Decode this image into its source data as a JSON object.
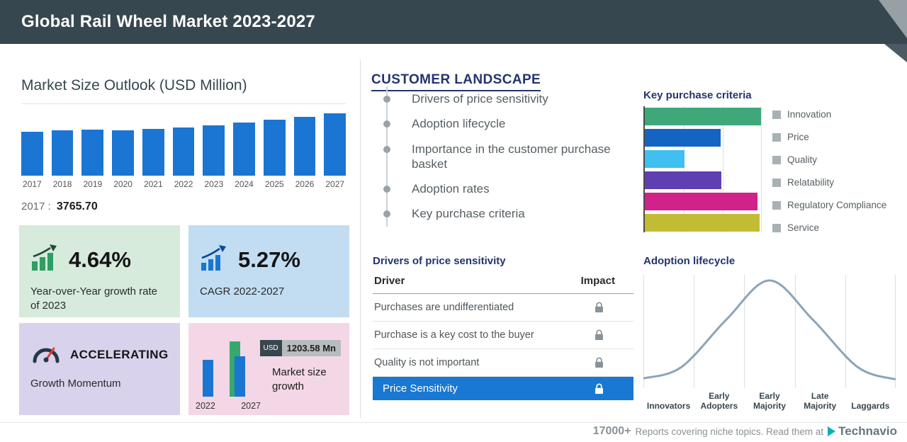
{
  "header": {
    "title": "Global Rail Wheel Market 2023-2027"
  },
  "market_outlook": {
    "title": "Market Size Outlook (USD Million)",
    "base_year_label": "2017 :",
    "base_year_value": "3765.70"
  },
  "cards": {
    "yoy": {
      "value": "4.64%",
      "label": "Year-over-Year growth rate of 2023"
    },
    "cagr": {
      "value": "5.27%",
      "label": "CAGR 2022-2027"
    },
    "momentum": {
      "title": "ACCELERATING",
      "label": "Growth Momentum"
    },
    "growth": {
      "currency": "USD",
      "amount": "1203.58 Mn",
      "label": "Market size growth",
      "start_year": "2022",
      "end_year": "2027"
    }
  },
  "customer_landscape": {
    "title": "CUSTOMER LANDSCAPE",
    "items": [
      "Drivers of price sensitivity",
      "Adoption lifecycle",
      "Importance in the customer purchase basket",
      "Adoption rates",
      "Key purchase criteria"
    ]
  },
  "key_purchase_criteria": {
    "heading": "Key purchase criteria"
  },
  "price_sensitivity": {
    "heading": "Drivers of price sensitivity",
    "columns": [
      "Driver",
      "Impact"
    ],
    "rows": [
      "Purchases are undifferentiated",
      "Purchase is a key cost to the buyer",
      "Quality is not important"
    ],
    "highlight": "Price Sensitivity"
  },
  "adoption_lifecycle": {
    "heading": "Adoption lifecycle"
  },
  "footer": {
    "count": "17000+",
    "text": "Reports covering niche topics. Read them at",
    "brand": "Technavio"
  },
  "colors": {
    "header": "#37474f",
    "accent_blue": "#1b75d2",
    "teal": "#00b2bd",
    "highlight_row": "#1878d2"
  },
  "chart_data": [
    {
      "name": "market-size-outlook",
      "type": "bar",
      "title": "Market Size Outlook (USD Million)",
      "categories": [
        "2017",
        "2018",
        "2019",
        "2020",
        "2021",
        "2022",
        "2023",
        "2024",
        "2025",
        "2026",
        "2027"
      ],
      "values": [
        3765.7,
        3850,
        3935,
        3865,
        3990,
        4110,
        4300,
        4505,
        4755,
        5025,
        5315
      ],
      "ylabel": "USD Million",
      "bar_color": "#1b75d2",
      "labeled_value": {
        "year": "2017",
        "value": 3765.7
      }
    },
    {
      "name": "key-purchase-criteria",
      "type": "bar",
      "orientation": "horizontal",
      "categories": [
        "Innovation",
        "Price",
        "Quality",
        "Relatability",
        "Regulatory Compliance",
        "Service"
      ],
      "values": [
        100,
        65,
        34,
        66,
        97,
        99
      ],
      "value_unit": "relative-length",
      "colors": [
        "#3fa87a",
        "#1464c4",
        "#3fc0f0",
        "#6040b0",
        "#d02288",
        "#c2bc35"
      ],
      "legend_position": "right",
      "grid": true
    },
    {
      "name": "adoption-lifecycle",
      "type": "line",
      "curve": "bell",
      "categories": [
        "Innovators",
        "Early Adopters",
        "Early Majority",
        "Late Majority",
        "Laggards"
      ],
      "points": [
        [
          0,
          0.04
        ],
        [
          0.15,
          0.15
        ],
        [
          0.33,
          0.62
        ],
        [
          0.5,
          1.0
        ],
        [
          0.67,
          0.62
        ],
        [
          0.85,
          0.15
        ],
        [
          1,
          0.03
        ]
      ],
      "line_color": "#8ba4ba",
      "grid": true
    },
    {
      "name": "market-size-growth",
      "type": "bar",
      "categories": [
        "2022",
        "2027"
      ],
      "growth_label": "USD 1203.58 Mn"
    }
  ]
}
